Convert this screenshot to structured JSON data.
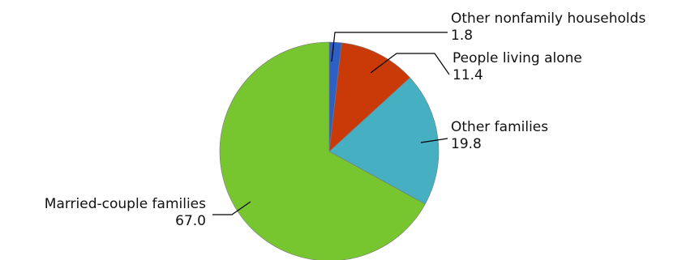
{
  "chart_data": {
    "type": "pie",
    "slices": [
      {
        "label": "Other nonfamily households",
        "value": 1.8,
        "value_text": "1.8",
        "color": "#2e5fc4"
      },
      {
        "label": "People living alone",
        "value": 11.4,
        "value_text": "11.4",
        "color": "#c93a08"
      },
      {
        "label": "Other families",
        "value": 19.8,
        "value_text": "19.8",
        "color": "#47afc2"
      },
      {
        "label": "Married-couple families",
        "value": 67.0,
        "value_text": "67.0",
        "color": "#77c630"
      }
    ],
    "start_angle": "12 o'clock",
    "direction": "clockwise",
    "legend": "none",
    "labels": "outside with leader lines"
  }
}
